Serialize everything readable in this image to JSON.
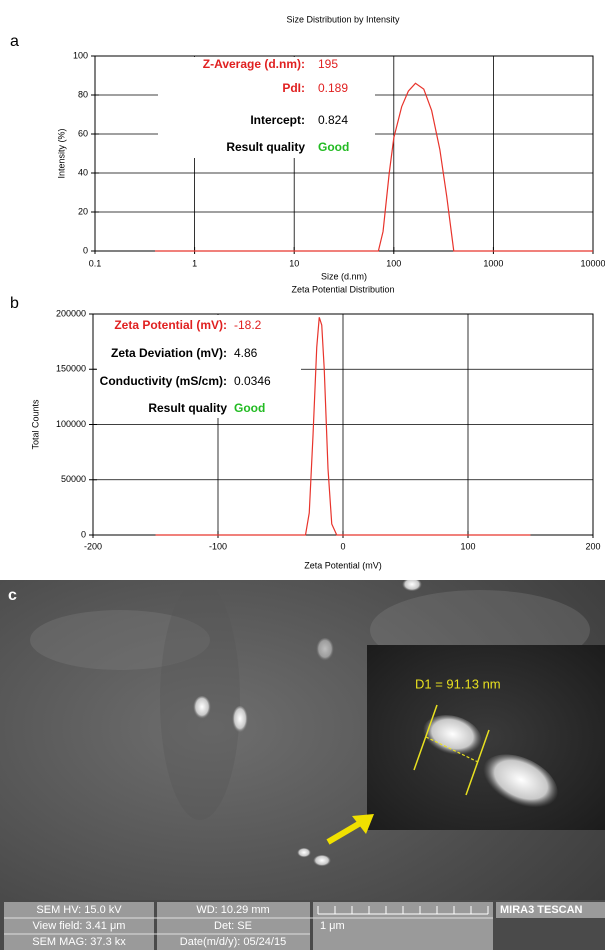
{
  "chart_data": [
    {
      "type": "line",
      "panel": "a",
      "title": "Size Distribution by Intensity",
      "x_label": "Size (d.nm)",
      "y_label": "Intensity (%)",
      "xscale": "log",
      "xlim": [
        0.1,
        10000
      ],
      "xticks": [
        0.1,
        1,
        10,
        100,
        1000,
        10000
      ],
      "ylim": [
        0,
        100
      ],
      "yticks": [
        0,
        20,
        40,
        60,
        80,
        100
      ],
      "grid": true,
      "color": "#e8342c",
      "x": [
        0.4,
        70,
        78,
        90,
        100,
        120,
        140,
        165,
        200,
        240,
        290,
        340,
        400,
        10000
      ],
      "values": [
        0,
        0,
        10,
        40,
        58,
        74,
        82,
        86,
        83,
        72,
        52,
        28,
        0,
        0
      ],
      "annotations": [
        {
          "label": "Z-Average (d.nm):",
          "value": 195,
          "label_color": "#e02020",
          "value_color": "#e02020"
        },
        {
          "label": "PdI:",
          "value": 0.189,
          "label_color": "#e02020",
          "value_color": "#e02020"
        },
        {
          "label": "Intercept:",
          "value": 0.824,
          "label_color": "#000000",
          "value_color": "#000000"
        },
        {
          "label": "Result quality",
          "value": "Good",
          "label_color": "#000000",
          "value_color": "#22bb22"
        }
      ]
    },
    {
      "type": "line",
      "panel": "b",
      "title": "Zeta Potential Distribution",
      "x_label": "Zeta Potential (mV)",
      "y_label": "Total Counts",
      "xlim": [
        -200,
        200
      ],
      "xticks": [
        -200,
        -100,
        0,
        100,
        200
      ],
      "ylim": [
        0,
        200000
      ],
      "yticks": [
        0,
        50000,
        100000,
        150000,
        200000
      ],
      "grid": true,
      "color": "#e8342c",
      "x": [
        -150,
        -30,
        -27,
        -24,
        -21,
        -19,
        -17,
        -15,
        -12,
        -9,
        -5,
        150
      ],
      "values": [
        0,
        0,
        20000,
        90000,
        170000,
        197000,
        190000,
        150000,
        60000,
        10000,
        0,
        0
      ],
      "annotations": [
        {
          "label": "Zeta Potential (mV):",
          "value": -18.2,
          "label_color": "#e02020",
          "value_color": "#e02020"
        },
        {
          "label": "Zeta Deviation (mV):",
          "value": 4.86,
          "label_color": "#000000",
          "value_color": "#000000"
        },
        {
          "label": "Conductivity (mS/cm):",
          "value": 0.0346,
          "label_color": "#000000",
          "value_color": "#000000"
        },
        {
          "label": "Result quality",
          "value": "Good",
          "label_color": "#000000",
          "value_color": "#22bb22"
        }
      ]
    }
  ],
  "panel_c": {
    "label": "c",
    "measurement": "D1 = 91.13 nm",
    "info": [
      [
        "SEM HV: 15.0 kV",
        "View field: 3.41 μm",
        "SEM MAG: 37.3 kx"
      ],
      [
        "WD: 10.29 mm",
        "Det: SE",
        "Date(m/d/y): 05/24/15"
      ]
    ],
    "scale_bar": "1 μm",
    "instrument": "MIRA3 TESCAN"
  }
}
